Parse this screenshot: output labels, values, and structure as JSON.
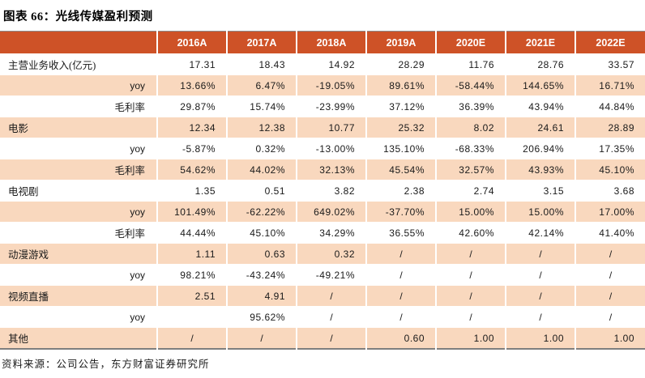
{
  "title": "图表 66：光线传媒盈利预测",
  "source": "资料来源：公司公告，东方财富证券研究所",
  "colors": {
    "header_bg": "#ce5227",
    "header_text": "#ffffff",
    "row_alt_bg": "#f9d8be",
    "table_border": "#7f7f7f"
  },
  "chart_data": {
    "type": "table",
    "columns": [
      "2016A",
      "2017A",
      "2018A",
      "2019A",
      "2020E",
      "2021E",
      "2022E"
    ],
    "rows": [
      {
        "label": "主营业务收入(亿元)",
        "indent": false,
        "values": [
          "17.31",
          "18.43",
          "14.92",
          "28.29",
          "11.76",
          "28.76",
          "33.57"
        ]
      },
      {
        "label": "yoy",
        "indent": true,
        "values": [
          "13.66%",
          "6.47%",
          "-19.05%",
          "89.61%",
          "-58.44%",
          "144.65%",
          "16.71%"
        ]
      },
      {
        "label": "毛利率",
        "indent": true,
        "values": [
          "29.87%",
          "15.74%",
          "-23.99%",
          "37.12%",
          "36.39%",
          "43.94%",
          "44.84%"
        ]
      },
      {
        "label": "电影",
        "indent": false,
        "values": [
          "12.34",
          "12.38",
          "10.77",
          "25.32",
          "8.02",
          "24.61",
          "28.89"
        ]
      },
      {
        "label": "yoy",
        "indent": true,
        "values": [
          "-5.87%",
          "0.32%",
          "-13.00%",
          "135.10%",
          "-68.33%",
          "206.94%",
          "17.35%"
        ]
      },
      {
        "label": "毛利率",
        "indent": true,
        "values": [
          "54.62%",
          "44.02%",
          "32.13%",
          "45.54%",
          "32.57%",
          "43.93%",
          "45.10%"
        ]
      },
      {
        "label": "电视剧",
        "indent": false,
        "values": [
          "1.35",
          "0.51",
          "3.82",
          "2.38",
          "2.74",
          "3.15",
          "3.68"
        ]
      },
      {
        "label": "yoy",
        "indent": true,
        "values": [
          "101.49%",
          "-62.22%",
          "649.02%",
          "-37.70%",
          "15.00%",
          "15.00%",
          "17.00%"
        ]
      },
      {
        "label": "毛利率",
        "indent": true,
        "values": [
          "44.44%",
          "45.10%",
          "34.29%",
          "36.55%",
          "42.60%",
          "42.14%",
          "41.40%"
        ]
      },
      {
        "label": "动漫游戏",
        "indent": false,
        "values": [
          "1.11",
          "0.63",
          "0.32",
          "/",
          "/",
          "/",
          "/"
        ]
      },
      {
        "label": "yoy",
        "indent": true,
        "values": [
          "98.21%",
          "-43.24%",
          "-49.21%",
          "/",
          "/",
          "/",
          "/"
        ]
      },
      {
        "label": "视频直播",
        "indent": false,
        "values": [
          "2.51",
          "4.91",
          "/",
          "/",
          "/",
          "/",
          "/"
        ]
      },
      {
        "label": "yoy",
        "indent": true,
        "values": [
          "",
          "95.62%",
          "/",
          "/",
          "/",
          "/",
          "/"
        ]
      },
      {
        "label": "其他",
        "indent": false,
        "values": [
          "/",
          "/",
          "/",
          "0.60",
          "1.00",
          "1.00",
          "1.00"
        ]
      }
    ]
  }
}
